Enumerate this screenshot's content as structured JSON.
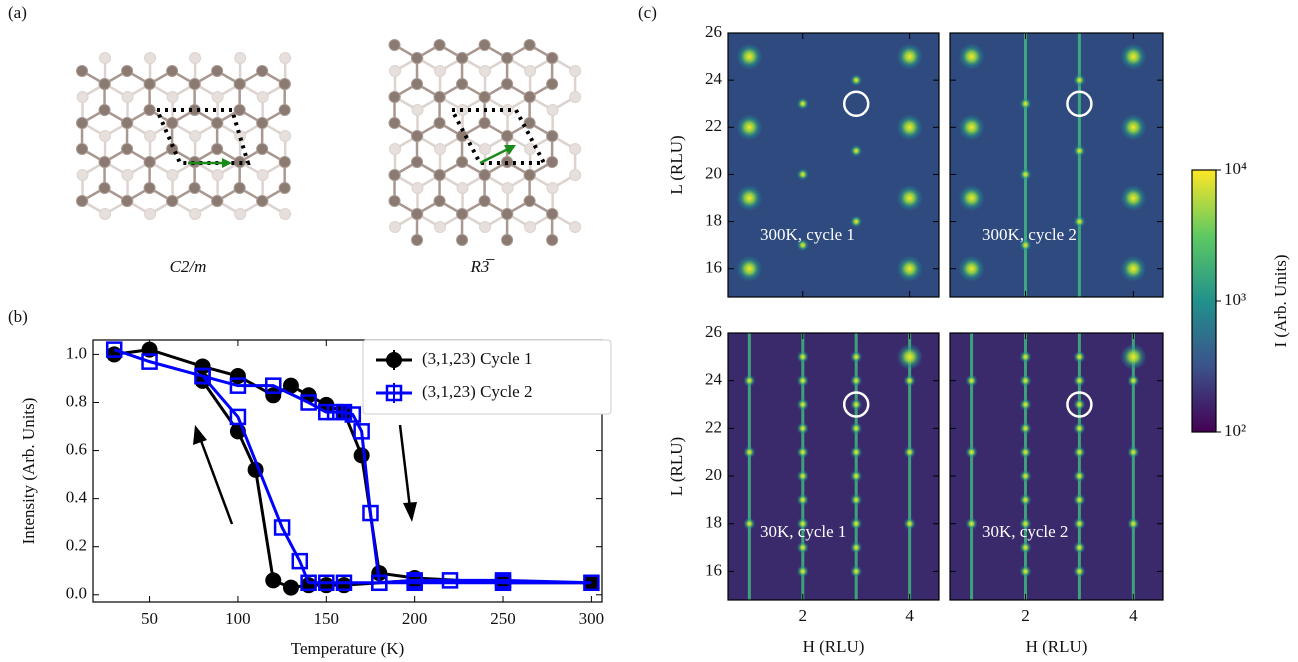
{
  "panel_labels": [
    "(a)",
    "(b)",
    "(c)"
  ],
  "lattices": [
    {
      "label": "C2/m"
    },
    {
      "label": "R3̅"
    }
  ],
  "chart_data": [
    {
      "type": "line",
      "xlabel": "Temperature (K)",
      "ylabel": "Intensity (Arb. Units)",
      "xlim": [
        18,
        306
      ],
      "ylim": [
        -0.03,
        1.06
      ],
      "xticks": [
        50,
        100,
        150,
        200,
        250,
        300
      ],
      "yticks": [
        {
          "value": 0,
          "label": "0.0"
        },
        {
          "value": 0.2,
          "label": "0.2"
        },
        {
          "value": 0.4,
          "label": "0.4"
        },
        {
          "value": 0.6,
          "label": "0.6"
        },
        {
          "value": 0.8,
          "label": "0.8"
        },
        {
          "value": 1,
          "label": "1.0"
        }
      ],
      "legend": "upper right",
      "series": [
        {
          "name": "(3,1,23) Cycle 1",
          "color": "#000000",
          "marker": "circle",
          "x": [
            30,
            50,
            80,
            100,
            120,
            130,
            140,
            150,
            160,
            170,
            180,
            200,
            250,
            300,
            200,
            160,
            150,
            140,
            130,
            120,
            110,
            100,
            80
          ],
          "values": [
            1.0,
            1.02,
            0.95,
            0.91,
            0.83,
            0.87,
            0.83,
            0.79,
            0.76,
            0.58,
            0.09,
            0.07,
            0.05,
            0.05,
            0.06,
            0.04,
            0.04,
            0.04,
            0.03,
            0.06,
            0.52,
            0.68,
            0.89
          ]
        },
        {
          "name": "(3,1,23) Cycle 2",
          "color": "#0000ff",
          "marker": "square",
          "x": [
            30,
            50,
            80,
            100,
            120,
            140,
            150,
            155,
            160,
            165,
            170,
            175,
            180,
            200,
            220,
            250,
            300,
            250,
            200,
            180,
            160,
            150,
            140,
            135,
            125,
            100,
            80
          ],
          "values": [
            1.02,
            0.97,
            0.91,
            0.87,
            0.87,
            0.8,
            0.76,
            0.76,
            0.76,
            0.75,
            0.68,
            0.34,
            0.05,
            0.06,
            0.06,
            0.06,
            0.05,
            0.05,
            0.05,
            0.05,
            0.05,
            0.05,
            0.05,
            0.14,
            0.28,
            0.74,
            0.91
          ]
        }
      ]
    },
    {
      "type": "image-grid",
      "xlabel": "H (RLU)",
      "ylabel": "L (RLU)",
      "xlim": [
        0.6,
        4.55
      ],
      "ylim": [
        14.8,
        26
      ],
      "xticks": [
        2,
        4
      ],
      "yticks": [
        16,
        18,
        20,
        22,
        24,
        26
      ],
      "panels": [
        {
          "label": "300K, cycle 1",
          "background": "#2f4a7f",
          "rods": [],
          "circle": {
            "x": 3,
            "y": 23
          },
          "peaks": {
            "x": [
              1,
              1,
              1,
              1,
              2,
              2,
              2,
              3,
              3,
              3,
              4,
              4,
              4,
              4
            ],
            "y": [
              16,
              19,
              22,
              25,
              17,
              20,
              23,
              18,
              21,
              24,
              16,
              19,
              22,
              25
            ]
          }
        },
        {
          "label": "300K, cycle 2",
          "background": "#2f4a7f",
          "rods": [
            2,
            3
          ],
          "circle": {
            "x": 3,
            "y": 23
          },
          "peaks": {
            "x": [
              1,
              1,
              1,
              1,
              2,
              2,
              2,
              3,
              3,
              3,
              4,
              4,
              4,
              4
            ],
            "y": [
              16,
              19,
              22,
              25,
              17,
              20,
              23,
              18,
              21,
              24,
              16,
              19,
              22,
              25
            ]
          }
        },
        {
          "label": "30K, cycle 1",
          "background": "#3a2a6c",
          "rods": [
            1,
            2,
            3,
            4
          ],
          "circle": {
            "x": 3,
            "y": 23
          },
          "peaks": {
            "x": [
              1,
              1,
              1,
              2,
              2,
              2,
              2,
              2,
              2,
              2,
              2,
              2,
              2,
              3,
              3,
              3,
              3,
              3,
              3,
              3,
              3,
              3,
              3,
              4,
              4,
              4,
              4
            ],
            "y": [
              18,
              21,
              24,
              16,
              17,
              18,
              19,
              20,
              21,
              22,
              23,
              24,
              25,
              16,
              17,
              18,
              19,
              20,
              21,
              22,
              23,
              24,
              25,
              18,
              21,
              24,
              25
            ]
          }
        },
        {
          "label": "30K, cycle 2",
          "background": "#3a2a6c",
          "rods": [
            1,
            2,
            3,
            4
          ],
          "circle": {
            "x": 3,
            "y": 23
          },
          "peaks": {
            "x": [
              1,
              1,
              1,
              2,
              2,
              2,
              2,
              2,
              2,
              2,
              2,
              2,
              2,
              3,
              3,
              3,
              3,
              3,
              3,
              3,
              3,
              3,
              3,
              4,
              4,
              4,
              4
            ],
            "y": [
              18,
              21,
              24,
              16,
              17,
              18,
              19,
              20,
              21,
              22,
              23,
              24,
              25,
              16,
              17,
              18,
              19,
              20,
              21,
              22,
              23,
              24,
              25,
              18,
              21,
              24,
              25
            ]
          }
        }
      ],
      "colorbar": {
        "label": "I (Arb. Units)",
        "scale": "log",
        "lim": [
          100,
          10000
        ],
        "ticks": [
          {
            "value": 100,
            "label": "10²"
          },
          {
            "value": 1000,
            "label": "10³"
          },
          {
            "value": 10000,
            "label": "10⁴"
          }
        ],
        "colors": [
          "#440154",
          "#3b528b",
          "#21918c",
          "#5ec962",
          "#fde725"
        ]
      }
    }
  ]
}
